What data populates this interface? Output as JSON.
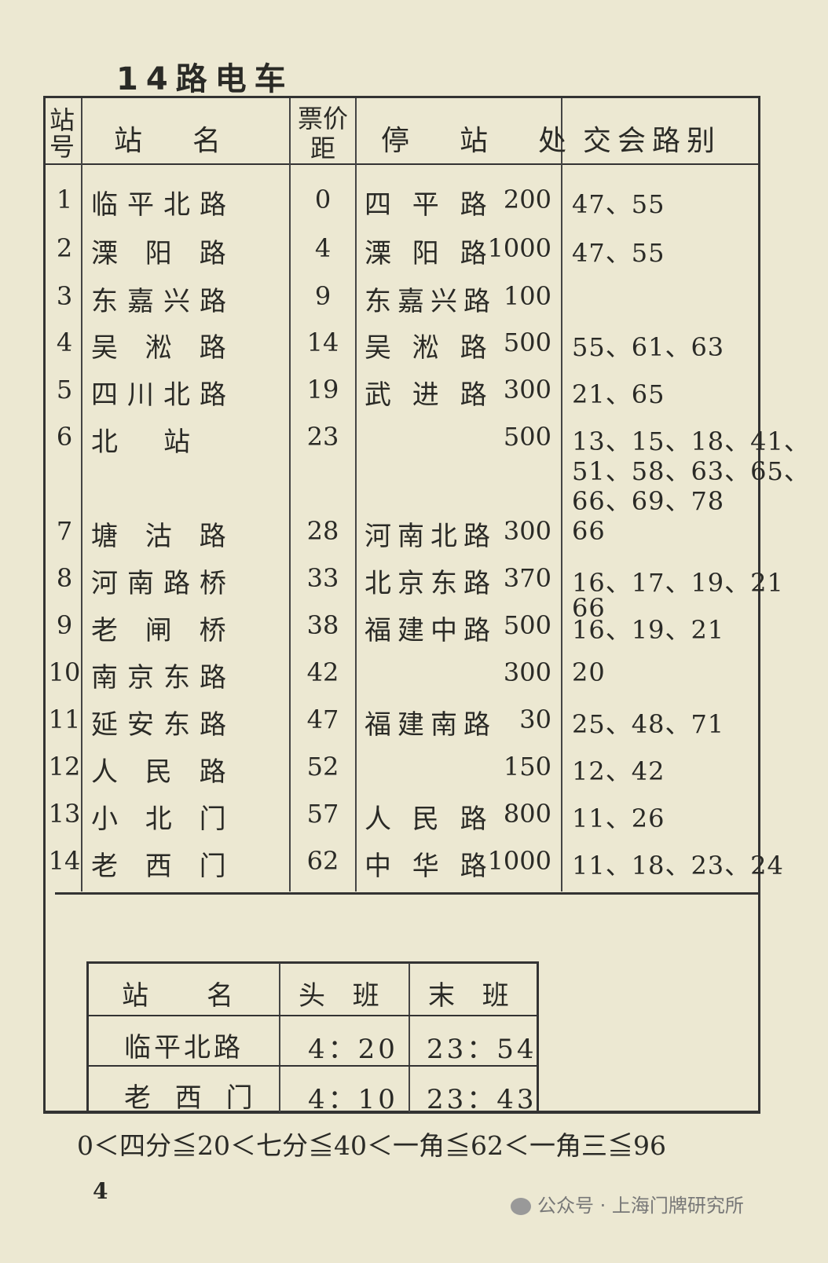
{
  "title": "14路电车",
  "headers": {
    "no": "站号",
    "name": "站　名",
    "fare": "票价距",
    "stop": "停　站　处",
    "exchange": "交会路别"
  },
  "rows": [
    {
      "no": "1",
      "name": "临平北路",
      "fare": "0",
      "stop": "四 平 路",
      "dist": "200",
      "exchange": [
        "47、55"
      ]
    },
    {
      "no": "2",
      "name": "溧 阳 路",
      "fare": "4",
      "stop": "溧 阳 路",
      "dist": "1000",
      "exchange": [
        "47、55"
      ]
    },
    {
      "no": "3",
      "name": "东嘉兴路",
      "fare": "9",
      "stop": "东嘉兴路",
      "dist": "100",
      "exchange": []
    },
    {
      "no": "4",
      "name": "吴 淞 路",
      "fare": "14",
      "stop": "吴 淞 路",
      "dist": "500",
      "exchange": [
        "55、61、63"
      ]
    },
    {
      "no": "5",
      "name": "四川北路",
      "fare": "19",
      "stop": "武 进 路",
      "dist": "300",
      "exchange": [
        "21、65"
      ]
    },
    {
      "no": "6",
      "name": "北　站",
      "fare": "23",
      "stop": "",
      "dist": "500",
      "exchange": [
        "13、15、18、41、",
        "51、58、63、65、",
        "66、69、78"
      ]
    },
    {
      "no": "7",
      "name": "塘 沽 路",
      "fare": "28",
      "stop": "河南北路",
      "dist": "300",
      "exchange": [
        "66"
      ]
    },
    {
      "no": "8",
      "name": "河南路桥",
      "fare": "33",
      "stop": "北京东路",
      "dist": "370",
      "exchange": [
        "16、17、19、21",
        "66"
      ]
    },
    {
      "no": "9",
      "name": "老 闸 桥",
      "fare": "38",
      "stop": "福建中路",
      "dist": "500",
      "exchange": [
        "16、19、21"
      ]
    },
    {
      "no": "10",
      "name": "南京东路",
      "fare": "42",
      "stop": "",
      "dist": "300",
      "exchange": [
        "20"
      ]
    },
    {
      "no": "11",
      "name": "延安东路",
      "fare": "47",
      "stop": "福建南路",
      "dist": "30",
      "exchange": [
        "25、48、71"
      ]
    },
    {
      "no": "12",
      "name": "人 民 路",
      "fare": "52",
      "stop": "",
      "dist": "150",
      "exchange": [
        "12、42"
      ]
    },
    {
      "no": "13",
      "name": "小 北 门",
      "fare": "57",
      "stop": "人 民 路",
      "dist": "800",
      "exchange": [
        "11、26"
      ]
    },
    {
      "no": "14",
      "name": "老 西 门",
      "fare": "62",
      "stop": "中 华 路",
      "dist": "1000",
      "exchange": [
        "11、18、23、24"
      ]
    }
  ],
  "timetable": {
    "headers": [
      "站　名",
      "头 班",
      "末 班"
    ],
    "rows": [
      [
        "临平北路",
        "4：20",
        "23：54"
      ],
      [
        "老 西 门",
        "4：10",
        "23：43"
      ]
    ]
  },
  "fare_note": "0＜四分≦20＜七分≦40＜一角≦62＜一角三≦96",
  "page_number": "4",
  "watermark": "公众号 · 上海门牌研究所"
}
